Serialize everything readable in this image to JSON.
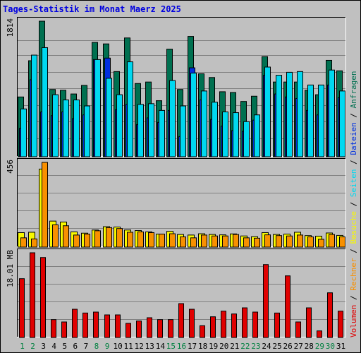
{
  "title": "Tages-Statistik im Monat Maerz 2025",
  "colors": {
    "anfragen": "#007050",
    "dateien": "#0030e0",
    "seiten": "#00d8f0",
    "besuche": "#f8f800",
    "rechner": "#f89000",
    "volumen": "#e00000",
    "weekday_label": "#000000",
    "weekend_label": "#008040",
    "panel_bg": "#c0c0c0",
    "grid": "#808080"
  },
  "legend": {
    "parts": [
      {
        "text": "Volumen",
        "key": "volumen"
      },
      {
        "text": " / ",
        "key": null
      },
      {
        "text": "Rechner",
        "key": "rechner"
      },
      {
        "text": " / ",
        "key": null
      },
      {
        "text": "Besuche",
        "key": "besuche"
      },
      {
        "text": " / ",
        "key": null
      },
      {
        "text": "Seiten",
        "key": "seiten"
      },
      {
        "text": " / ",
        "key": null
      },
      {
        "text": "Dateien",
        "key": "dateien"
      },
      {
        "text": " / ",
        "key": null
      },
      {
        "text": "Anfragen",
        "key": "anfragen"
      }
    ]
  },
  "chart_data": {
    "type": "bar",
    "title": "Tages-Statistik im Monat Maerz 2025",
    "categories": [
      "1",
      "2",
      "3",
      "4",
      "5",
      "6",
      "7",
      "8",
      "9",
      "10",
      "11",
      "12",
      "13",
      "14",
      "15",
      "16",
      "17",
      "18",
      "19",
      "20",
      "21",
      "22",
      "23",
      "24",
      "25",
      "26",
      "27",
      "28",
      "29",
      "30",
      "31"
    ],
    "weekend_days": [
      "1",
      "2",
      "8",
      "9",
      "15",
      "16",
      "22",
      "23",
      "29",
      "30"
    ],
    "panels": [
      {
        "id": "top",
        "ymax_label": "1814",
        "ylim": [
          0,
          1814
        ],
        "series": [
          {
            "name": "Anfragen",
            "key": "anfragen",
            "values": [
              800,
              1285,
              1814,
              900,
              890,
              840,
              955,
              1530,
              1510,
              1140,
              1590,
              980,
              1000,
              750,
              1440,
              900,
              1610,
              1110,
              1060,
              870,
              860,
              740,
              810,
              1340,
              1000,
              1000,
              1000,
              890,
              830,
              1290,
              1150
            ]
          },
          {
            "name": "Dateien",
            "key": "dateien",
            "values": [
              380,
              1030,
              600,
              550,
              600,
              510,
              560,
              1300,
              1320,
              630,
              700,
              430,
              520,
              460,
              620,
              270,
              1190,
              760,
              500,
              410,
              350,
              340,
              490,
              1090,
              840,
              800,
              780,
              620,
              560,
              960,
              790
            ]
          },
          {
            "name": "Seiten",
            "key": "seiten",
            "values": [
              640,
              1360,
              1460,
              830,
              760,
              760,
              680,
              1300,
              1050,
              830,
              1270,
              700,
              710,
              620,
              1020,
              680,
              1120,
              880,
              730,
              600,
              590,
              470,
              560,
              1200,
              1090,
              1130,
              1140,
              960,
              960,
              1160,
              880
            ]
          }
        ]
      },
      {
        "id": "middle",
        "ymax_label": "456",
        "ylim": [
          0,
          456
        ],
        "series": [
          {
            "name": "Besuche",
            "key": "besuche",
            "values": [
              78,
              80,
              420,
              140,
              135,
              82,
              75,
              92,
              110,
              108,
              92,
              89,
              82,
              70,
              85,
              68,
              65,
              72,
              68,
              66,
              71,
              60,
              56,
              78,
              68,
              70,
              80,
              62,
              59,
              76,
              63
            ]
          },
          {
            "name": "Rechner",
            "key": "rechner",
            "values": [
              50,
              44,
              456,
              120,
              115,
              65,
              70,
              88,
              105,
              100,
              80,
              82,
              78,
              70,
              72,
              55,
              50,
              65,
              60,
              60,
              68,
              50,
              48,
              66,
              62,
              60,
              65,
              55,
              42,
              68,
              55
            ]
          }
        ]
      },
      {
        "id": "bottom",
        "ymax_label": "18.01 MB",
        "ylim": [
          0,
          18.01
        ],
        "series": [
          {
            "name": "Volumen",
            "key": "volumen",
            "values": [
              12.5,
              18.01,
              17.0,
              3.8,
              3.3,
              6.0,
              5.2,
              5.4,
              4.8,
              4.8,
              3.0,
              3.5,
              4.2,
              3.8,
              3.8,
              7.2,
              6.0,
              2.5,
              4.4,
              5.6,
              5.0,
              6.3,
              5.4,
              15.5,
              5.2,
              13.1,
              3.3,
              6.3,
              1.4,
              9.5,
              5.6
            ]
          }
        ]
      }
    ]
  }
}
